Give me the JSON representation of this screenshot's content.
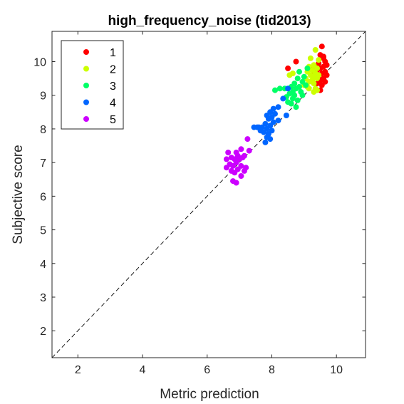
{
  "chart_data": {
    "type": "scatter",
    "title": "high_frequency_noise (tid2013)",
    "xlabel": "Metric prediction",
    "ylabel": "Subjective score",
    "xlim": [
      1.2,
      10.9
    ],
    "ylim": [
      1.2,
      10.9
    ],
    "xticks": [
      2,
      4,
      6,
      8,
      10
    ],
    "yticks": [
      2,
      3,
      4,
      5,
      6,
      7,
      8,
      9,
      10
    ],
    "grid": false,
    "legend_position": "top-left",
    "reference_line": "identity (dashed)",
    "series": [
      {
        "name": "1",
        "color": "#ff0000",
        "points": [
          [
            9.55,
            10.45
          ],
          [
            9.5,
            10.2
          ],
          [
            9.6,
            10.1
          ],
          [
            9.65,
            10.0
          ],
          [
            9.45,
            9.95
          ],
          [
            9.6,
            9.85
          ],
          [
            9.5,
            9.8
          ],
          [
            9.4,
            9.75
          ],
          [
            9.65,
            9.7
          ],
          [
            9.55,
            9.65
          ],
          [
            9.45,
            9.6
          ],
          [
            9.7,
            9.6
          ],
          [
            9.35,
            9.55
          ],
          [
            9.6,
            9.5
          ],
          [
            9.5,
            9.45
          ],
          [
            9.65,
            9.4
          ],
          [
            9.4,
            9.35
          ],
          [
            9.55,
            9.3
          ],
          [
            9.5,
            9.15
          ],
          [
            9.3,
            9.85
          ],
          [
            8.75,
            10.0
          ],
          [
            8.5,
            9.8
          ],
          [
            9.7,
            9.9
          ],
          [
            9.25,
            9.6
          ],
          [
            9.6,
            10.15
          ],
          [
            9.45,
            9.5
          ]
        ]
      },
      {
        "name": "2",
        "color": "#ccff00",
        "points": [
          [
            9.35,
            10.35
          ],
          [
            9.2,
            10.1
          ],
          [
            9.45,
            10.05
          ],
          [
            9.3,
            9.9
          ],
          [
            9.15,
            9.85
          ],
          [
            9.4,
            9.8
          ],
          [
            9.25,
            9.75
          ],
          [
            9.1,
            9.7
          ],
          [
            9.35,
            9.65
          ],
          [
            9.2,
            9.6
          ],
          [
            9.3,
            9.55
          ],
          [
            9.05,
            9.5
          ],
          [
            9.4,
            9.5
          ],
          [
            9.25,
            9.45
          ],
          [
            9.15,
            9.4
          ],
          [
            9.3,
            9.35
          ],
          [
            9.1,
            9.25
          ],
          [
            9.35,
            9.2
          ],
          [
            9.3,
            9.1
          ],
          [
            9.0,
            9.3
          ],
          [
            8.55,
            9.6
          ],
          [
            8.65,
            9.65
          ],
          [
            9.45,
            9.6
          ],
          [
            9.15,
            9.2
          ],
          [
            9.4,
            9.15
          ]
        ]
      },
      {
        "name": "3",
        "color": "#00ff66",
        "points": [
          [
            9.1,
            9.8
          ],
          [
            8.85,
            9.7
          ],
          [
            9.0,
            9.55
          ],
          [
            8.8,
            9.5
          ],
          [
            8.95,
            9.4
          ],
          [
            8.7,
            9.35
          ],
          [
            9.05,
            9.3
          ],
          [
            8.6,
            9.25
          ],
          [
            8.85,
            9.25
          ],
          [
            8.25,
            9.2
          ],
          [
            8.1,
            9.15
          ],
          [
            8.75,
            9.2
          ],
          [
            8.9,
            9.1
          ],
          [
            8.55,
            9.05
          ],
          [
            8.7,
            9.0
          ],
          [
            8.45,
            8.95
          ],
          [
            8.65,
            8.9
          ],
          [
            8.8,
            8.85
          ],
          [
            8.5,
            8.8
          ],
          [
            8.6,
            8.75
          ],
          [
            8.75,
            8.65
          ],
          [
            8.95,
            9.0
          ],
          [
            8.65,
            9.1
          ],
          [
            8.4,
            9.2
          ]
        ]
      },
      {
        "name": "4",
        "color": "#0066ff",
        "points": [
          [
            8.5,
            9.2
          ],
          [
            8.35,
            8.9
          ],
          [
            8.2,
            8.65
          ],
          [
            8.05,
            8.6
          ],
          [
            7.95,
            8.5
          ],
          [
            8.1,
            8.45
          ],
          [
            7.85,
            8.4
          ],
          [
            8.0,
            8.35
          ],
          [
            7.9,
            8.3
          ],
          [
            8.2,
            8.25
          ],
          [
            8.05,
            8.2
          ],
          [
            7.8,
            8.15
          ],
          [
            7.95,
            8.1
          ],
          [
            7.7,
            8.05
          ],
          [
            7.55,
            8.05
          ],
          [
            7.85,
            8.0
          ],
          [
            7.65,
            7.95
          ],
          [
            8.0,
            7.95
          ],
          [
            7.75,
            7.9
          ],
          [
            7.9,
            7.85
          ],
          [
            7.85,
            7.75
          ],
          [
            7.95,
            7.7
          ],
          [
            7.8,
            7.6
          ],
          [
            8.45,
            8.4
          ],
          [
            7.45,
            8.05
          ],
          [
            7.6,
            8.05
          ]
        ]
      },
      {
        "name": "5",
        "color": "#cc00ff",
        "points": [
          [
            7.25,
            7.7
          ],
          [
            7.05,
            7.4
          ],
          [
            7.3,
            7.35
          ],
          [
            6.9,
            7.3
          ],
          [
            6.65,
            7.3
          ],
          [
            7.15,
            7.2
          ],
          [
            6.95,
            7.2
          ],
          [
            6.75,
            7.15
          ],
          [
            7.1,
            7.15
          ],
          [
            6.6,
            7.1
          ],
          [
            6.85,
            7.1
          ],
          [
            7.0,
            7.1
          ],
          [
            6.9,
            7.0
          ],
          [
            6.7,
            6.95
          ],
          [
            7.05,
            6.9
          ],
          [
            6.8,
            6.9
          ],
          [
            6.6,
            6.85
          ],
          [
            6.95,
            6.8
          ],
          [
            6.75,
            6.75
          ],
          [
            7.15,
            6.75
          ],
          [
            6.85,
            6.7
          ],
          [
            7.05,
            6.6
          ],
          [
            6.8,
            6.45
          ],
          [
            6.9,
            6.4
          ],
          [
            7.2,
            6.85
          ]
        ]
      }
    ]
  }
}
